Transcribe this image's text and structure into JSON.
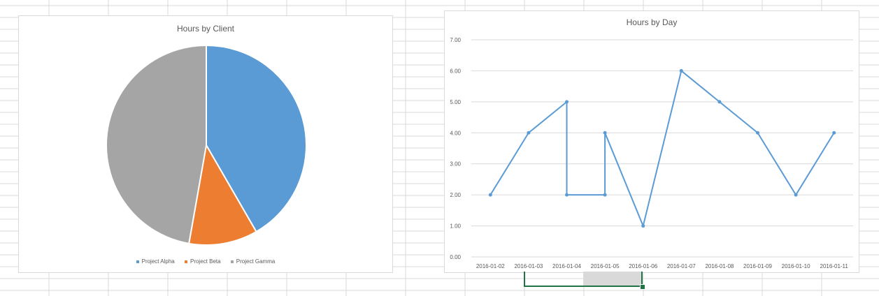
{
  "chart_data": [
    {
      "type": "pie",
      "title": "Hours by Client",
      "categories": [
        "Project Alpha",
        "Project Beta",
        "Project Gamma"
      ],
      "values": [
        15,
        4,
        17
      ],
      "colors": [
        "#5b9bd5",
        "#ed7d31",
        "#a5a5a5"
      ],
      "legend_position": "bottom"
    },
    {
      "type": "line",
      "title": "Hours by Day",
      "x": [
        "2016-01-02",
        "2016-01-03",
        "2016-01-04",
        "2016-01-04",
        "2016-01-05",
        "2016-01-05",
        "2016-01-06",
        "2016-01-07",
        "2016-01-08",
        "2016-01-09",
        "2016-01-10",
        "2016-01-11"
      ],
      "y": [
        2,
        4,
        5,
        2,
        2,
        4,
        1,
        6,
        5,
        4,
        2,
        4
      ],
      "categories": [
        "2016-01-02",
        "2016-01-03",
        "2016-01-04",
        "2016-01-05",
        "2016-01-06",
        "2016-01-07",
        "2016-01-08",
        "2016-01-09",
        "2016-01-10",
        "2016-01-11"
      ],
      "y_ticks": [
        "0.00",
        "1.00",
        "2.00",
        "3.00",
        "4.00",
        "5.00",
        "6.00",
        "7.00"
      ],
      "ylim": [
        0,
        7
      ],
      "grid": true,
      "color": "#5b9bd5"
    }
  ]
}
